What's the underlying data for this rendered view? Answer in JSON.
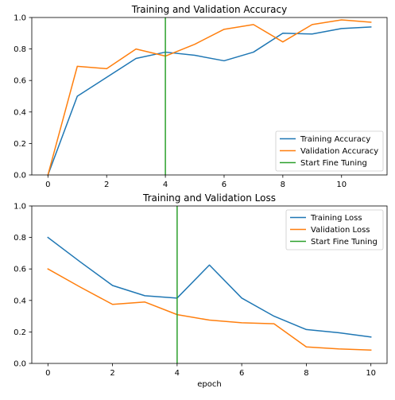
{
  "chart_data": [
    {
      "type": "line",
      "title": "Training and Validation Accuracy",
      "xlabel": "",
      "ylabel": "",
      "xlim": [
        -0.55,
        11.55
      ],
      "ylim": [
        0,
        1.0
      ],
      "xticks": [
        0,
        2,
        4,
        6,
        8,
        10
      ],
      "yticks": [
        0.0,
        0.2,
        0.4,
        0.6,
        0.8,
        1.0
      ],
      "legend_position": "lower-right",
      "series": [
        {
          "name": "Training Accuracy",
          "color": "#1f77b4",
          "x": [
            0,
            1,
            2,
            3,
            4,
            5,
            6,
            7,
            8,
            9,
            10,
            11
          ],
          "values": [
            0.0,
            0.5,
            0.62,
            0.74,
            0.78,
            0.76,
            0.725,
            0.78,
            0.9,
            0.895,
            0.93,
            0.94
          ]
        },
        {
          "name": "Validation Accuracy",
          "color": "#ff7f0e",
          "x": [
            0,
            1,
            2,
            3,
            4,
            5,
            6,
            7,
            8,
            9,
            10,
            11
          ],
          "values": [
            0.0,
            0.69,
            0.675,
            0.8,
            0.755,
            0.83,
            0.925,
            0.955,
            0.845,
            0.955,
            0.985,
            0.97
          ]
        }
      ],
      "vline": {
        "name": "Start Fine Tuning",
        "color": "#2ca02c",
        "x": 4
      }
    },
    {
      "type": "line",
      "title": "Training and Validation Loss",
      "xlabel": "epoch",
      "ylabel": "",
      "xlim": [
        -0.5,
        10.5
      ],
      "ylim": [
        0,
        1.0
      ],
      "xticks": [
        0,
        2,
        4,
        6,
        8,
        10
      ],
      "yticks": [
        0.0,
        0.2,
        0.4,
        0.6,
        0.8,
        1.0
      ],
      "legend_position": "upper-right",
      "series": [
        {
          "name": "Training Loss",
          "color": "#1f77b4",
          "x": [
            0,
            1,
            2,
            3,
            4,
            5,
            6,
            7,
            8,
            9,
            10
          ],
          "values": [
            0.8,
            0.645,
            0.495,
            0.43,
            0.415,
            0.625,
            0.415,
            0.3,
            0.215,
            0.195,
            0.168
          ]
        },
        {
          "name": "Validation Loss",
          "color": "#ff7f0e",
          "x": [
            0,
            1,
            2,
            3,
            4,
            5,
            6,
            7,
            8,
            9,
            10
          ],
          "values": [
            0.6,
            0.485,
            0.375,
            0.39,
            0.31,
            0.275,
            0.258,
            0.252,
            0.105,
            0.092,
            0.085
          ]
        }
      ],
      "vline": {
        "name": "Start Fine Tuning",
        "color": "#2ca02c",
        "x": 4
      }
    }
  ]
}
